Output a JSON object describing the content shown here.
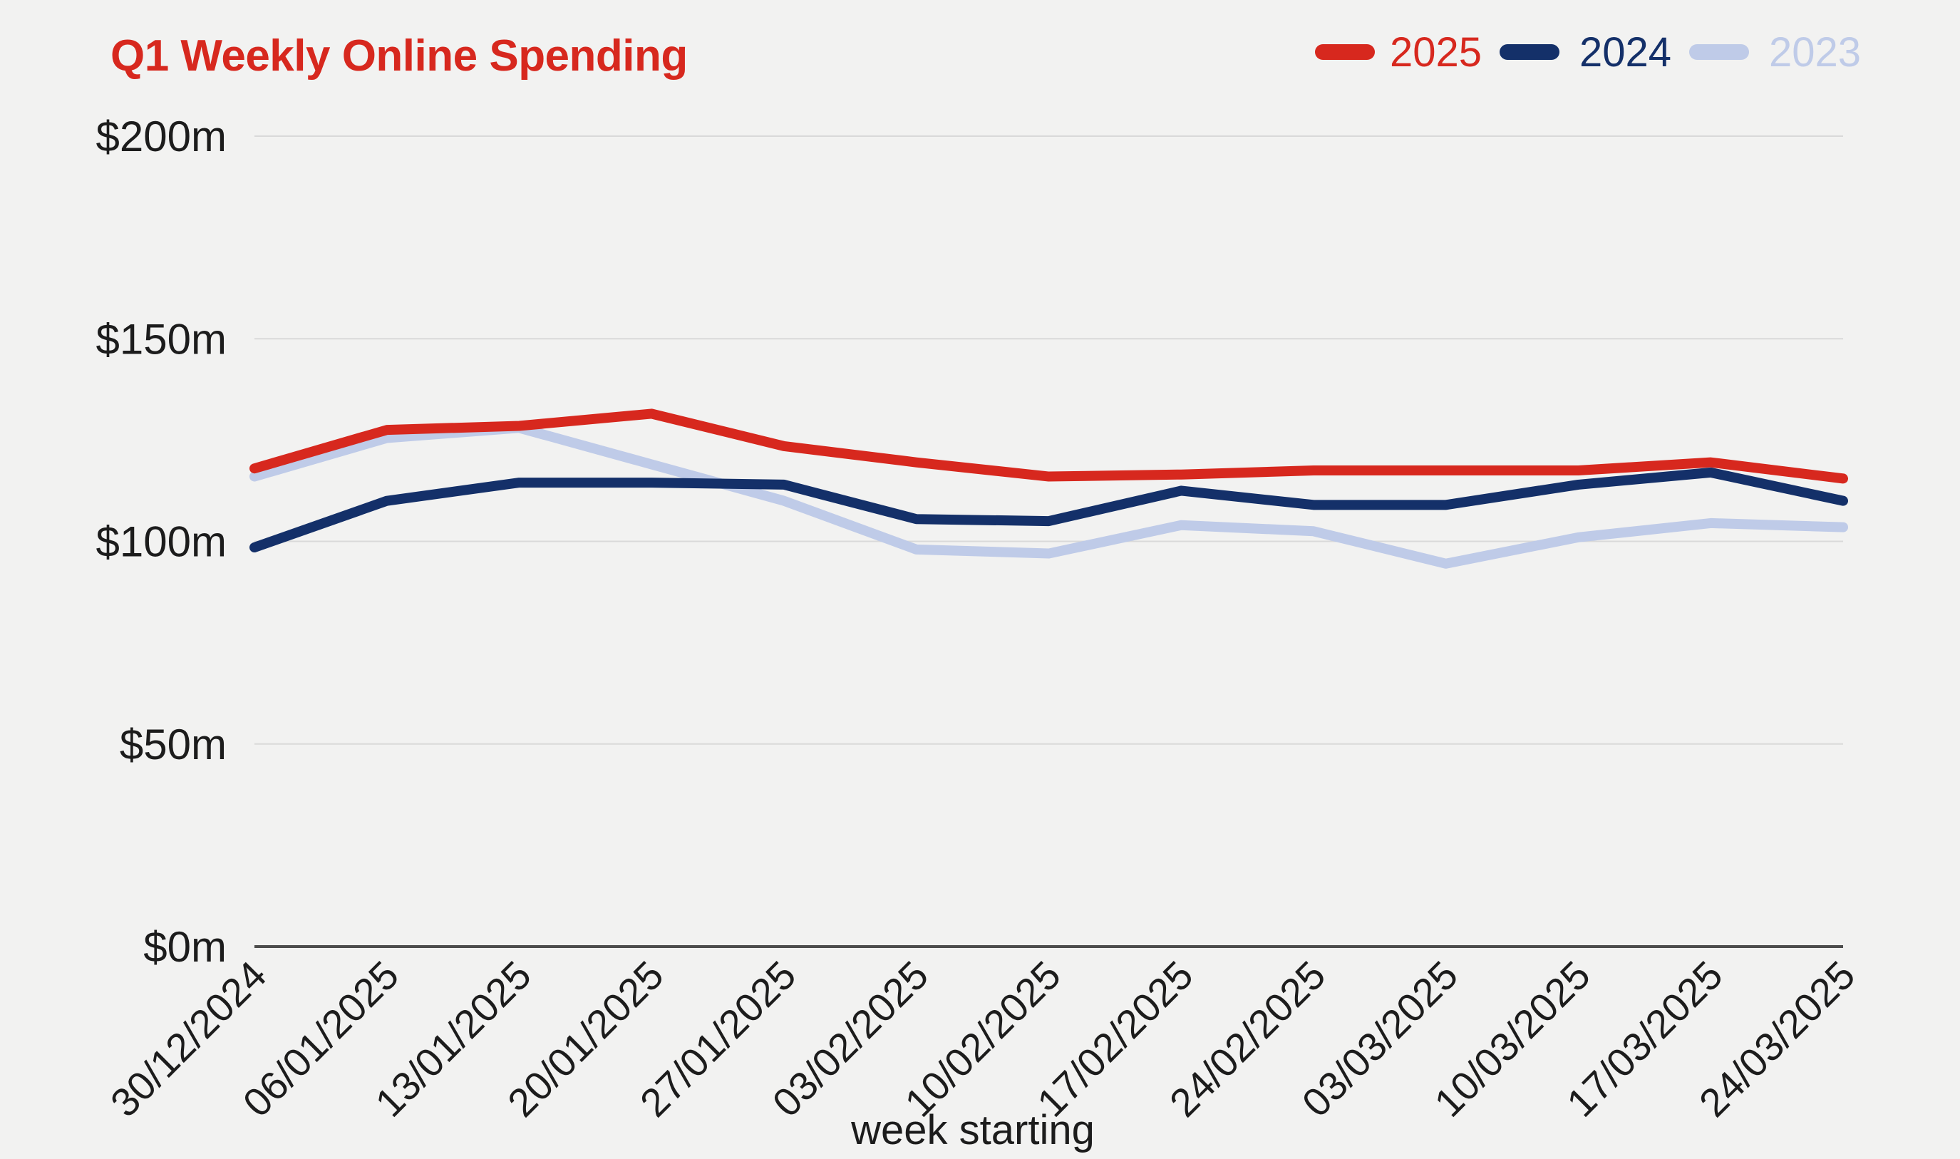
{
  "title": "Q1 Weekly Online Spending",
  "xlabel": "week starting",
  "legend": [
    {
      "label": "2025",
      "color": "#d7281e"
    },
    {
      "label": "2024",
      "color": "#143069"
    },
    {
      "label": "2023",
      "color": "#bfcbe8"
    }
  ],
  "colors": {
    "background": "#f2f2f1",
    "gridline": "#d9d9d9",
    "axis_line": "#4d4d4d",
    "text": "#1c1c1c",
    "title": "#d7281e"
  },
  "chart_data": {
    "type": "line",
    "title": "Q1 Weekly Online Spending",
    "xlabel": "week starting",
    "ylabel": "",
    "unit": "$m",
    "ylim": [
      0,
      200
    ],
    "grid": "horizontal",
    "legend_position": "top-right",
    "y_ticks": [
      {
        "value": 0,
        "label": "$0m"
      },
      {
        "value": 50,
        "label": "$50m"
      },
      {
        "value": 100,
        "label": "$100m"
      },
      {
        "value": 150,
        "label": "$150m"
      },
      {
        "value": 200,
        "label": "$200m"
      }
    ],
    "categories": [
      "30/12/2024",
      "06/01/2025",
      "13/01/2025",
      "20/01/2025",
      "27/01/2025",
      "03/02/2025",
      "10/02/2025",
      "17/02/2025",
      "24/02/2025",
      "03/03/2025",
      "10/03/2025",
      "17/03/2025",
      "24/03/2025"
    ],
    "series": [
      {
        "name": "2025",
        "color": "#d7281e",
        "values": [
          118,
          127.5,
          128.5,
          131.5,
          123.5,
          119.5,
          116,
          116.5,
          117.5,
          117.5,
          117.5,
          119.5,
          115.5
        ]
      },
      {
        "name": "2024",
        "color": "#143069",
        "values": [
          98.5,
          110,
          114.5,
          114.5,
          114,
          105.5,
          105,
          112.5,
          109,
          109,
          114,
          117,
          110
        ]
      },
      {
        "name": "2023",
        "color": "#bfcbe8",
        "values": [
          116,
          125.5,
          128,
          119,
          110,
          98,
          97,
          104,
          102.5,
          94.5,
          101,
          104.5,
          103.5
        ]
      }
    ]
  }
}
